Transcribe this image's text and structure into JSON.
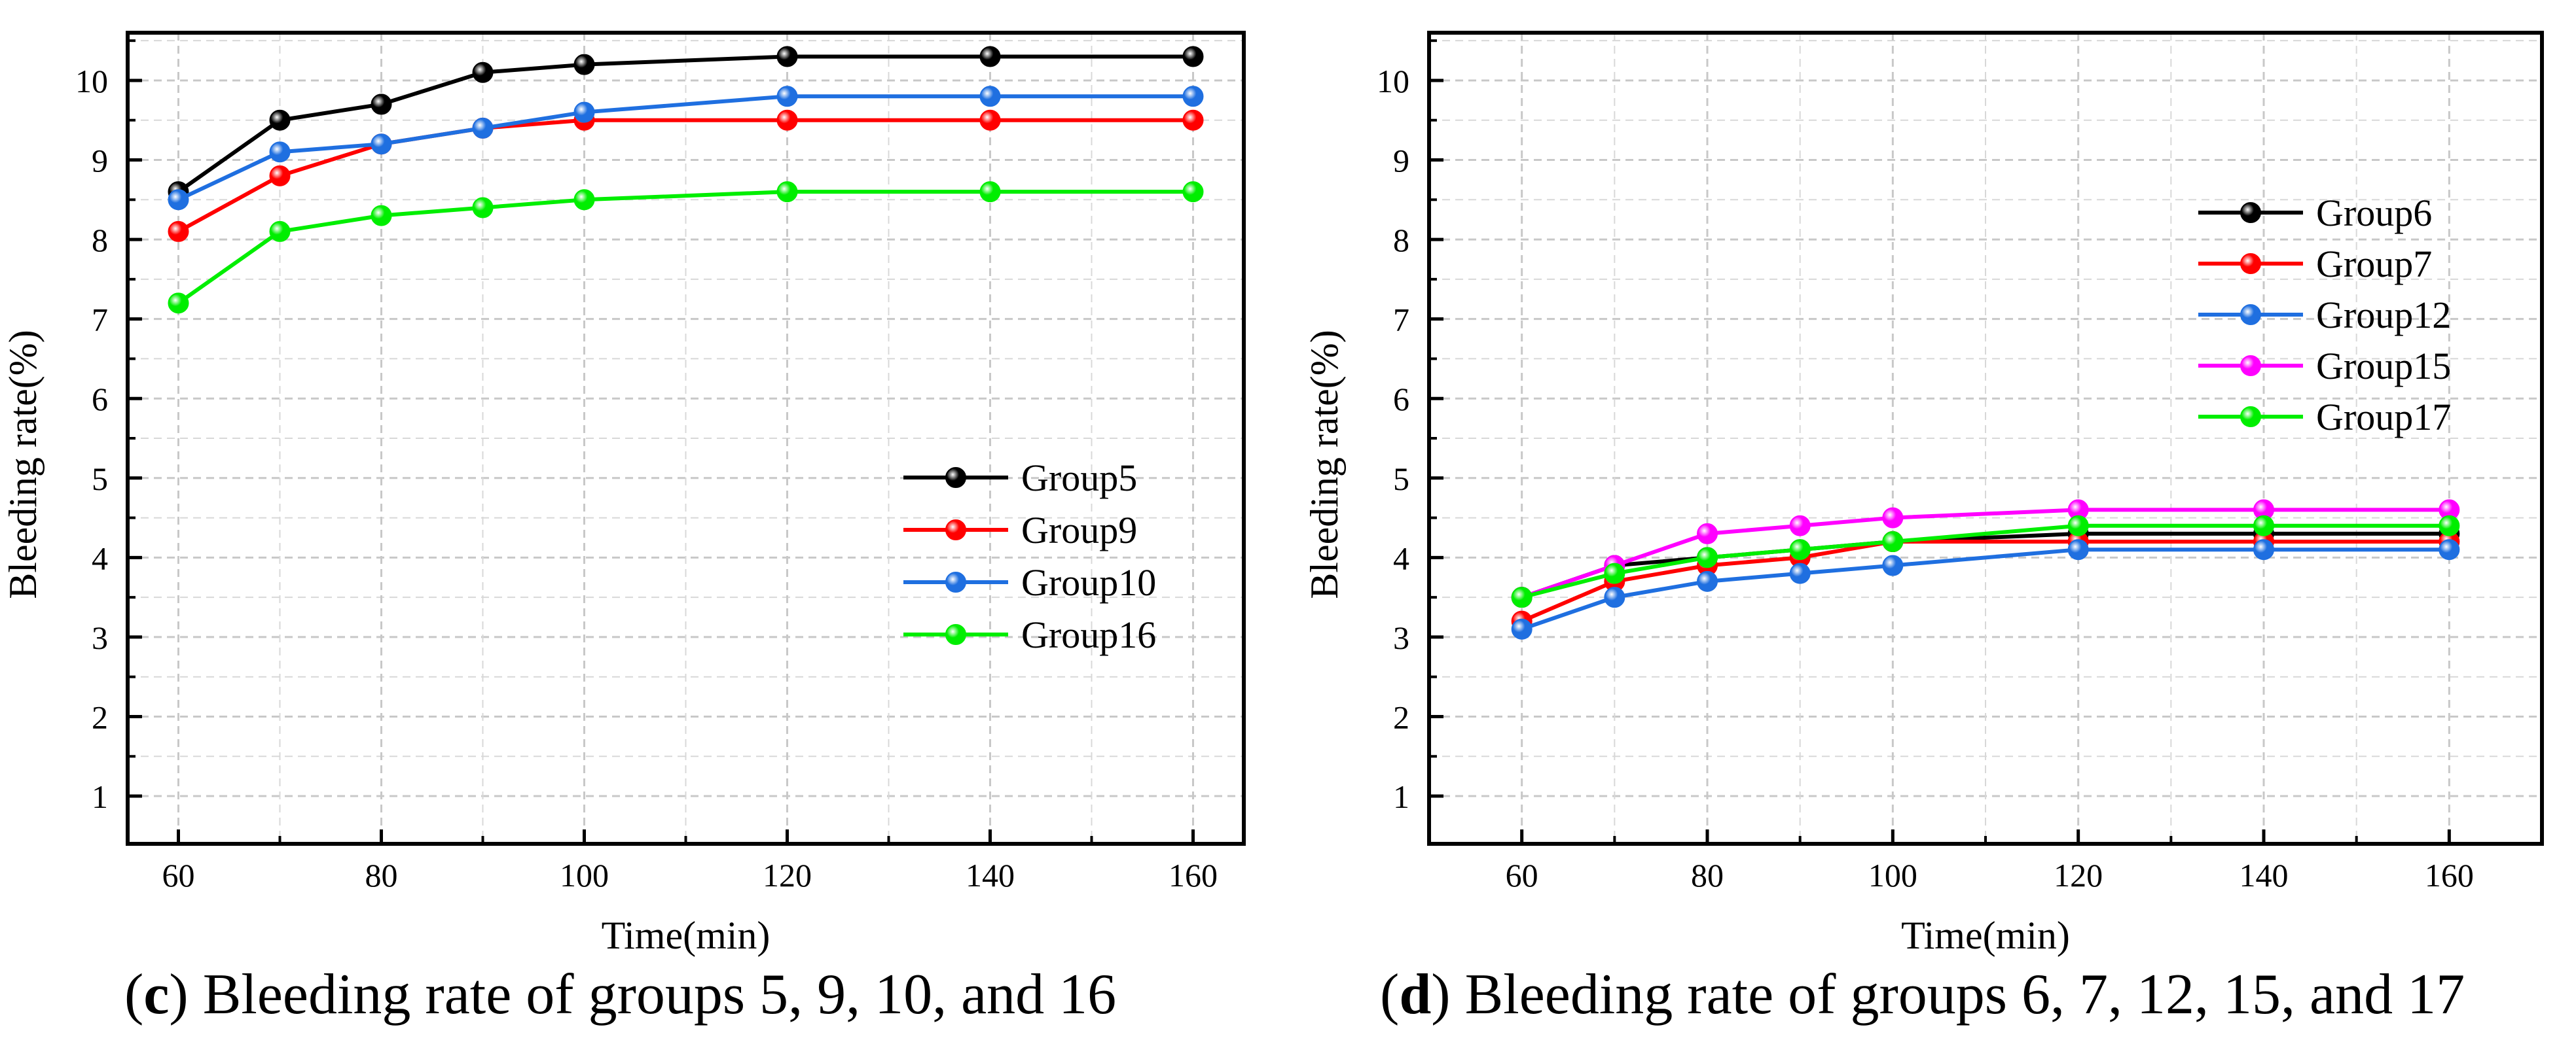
{
  "chart_data": [
    {
      "type": "line",
      "panel": "c",
      "title": "",
      "xlabel": "Time(min)",
      "ylabel": "Bleeding rate(%)",
      "xlim": [
        55,
        165
      ],
      "ylim": [
        0.4,
        10.6
      ],
      "x_ticks": [
        60,
        80,
        100,
        120,
        140,
        160
      ],
      "y_ticks": [
        1,
        2,
        3,
        4,
        5,
        6,
        7,
        8,
        9,
        10
      ],
      "grid": true,
      "legend_position": "lower-right",
      "x": [
        60,
        70,
        80,
        90,
        100,
        120,
        140,
        160
      ],
      "series": [
        {
          "name": "Group5",
          "color": "#000000",
          "values": [
            8.6,
            9.5,
            9.7,
            10.1,
            10.2,
            10.3,
            10.3,
            10.3
          ]
        },
        {
          "name": "Group9",
          "color": "#ff0000",
          "values": [
            8.1,
            8.8,
            9.2,
            9.4,
            9.5,
            9.5,
            9.5,
            9.5
          ]
        },
        {
          "name": "Group10",
          "color": "#1f6fe0",
          "values": [
            8.5,
            9.1,
            9.2,
            9.4,
            9.6,
            9.8,
            9.8,
            9.8
          ]
        },
        {
          "name": "Group16",
          "color": "#00ee00",
          "values": [
            7.2,
            8.1,
            8.3,
            8.4,
            8.5,
            8.6,
            8.6,
            8.6
          ]
        }
      ]
    },
    {
      "type": "line",
      "panel": "d",
      "title": "",
      "xlabel": "Time(min)",
      "ylabel": "Bleeding rate(%)",
      "xlim": [
        50,
        170
      ],
      "ylim": [
        0.4,
        10.6
      ],
      "x_ticks": [
        60,
        80,
        100,
        120,
        140,
        160
      ],
      "y_ticks": [
        1,
        2,
        3,
        4,
        5,
        6,
        7,
        8,
        9,
        10
      ],
      "grid": true,
      "legend_position": "upper-right",
      "x": [
        60,
        70,
        80,
        90,
        100,
        120,
        140,
        160
      ],
      "series": [
        {
          "name": "Group6",
          "color": "#000000",
          "values": [
            3.5,
            3.9,
            4.0,
            4.1,
            4.2,
            4.3,
            4.3,
            4.3
          ]
        },
        {
          "name": "Group7",
          "color": "#ff0000",
          "values": [
            3.2,
            3.7,
            3.9,
            4.0,
            4.2,
            4.2,
            4.2,
            4.2
          ]
        },
        {
          "name": "Group12",
          "color": "#1f6fe0",
          "values": [
            3.1,
            3.5,
            3.7,
            3.8,
            3.9,
            4.1,
            4.1,
            4.1
          ]
        },
        {
          "name": "Group15",
          "color": "#ff00ff",
          "values": [
            3.5,
            3.9,
            4.3,
            4.4,
            4.5,
            4.6,
            4.6,
            4.6
          ]
        },
        {
          "name": "Group17",
          "color": "#00ee00",
          "values": [
            3.5,
            3.8,
            4.0,
            4.1,
            4.2,
            4.4,
            4.4,
            4.4
          ]
        }
      ]
    }
  ],
  "captions": {
    "c": {
      "letter": "c",
      "text": " Bleeding rate of groups 5, 9, 10, and 16"
    },
    "d": {
      "letter": "d",
      "text": " Bleeding rate of groups 6, 7, 12, 15, and 17"
    }
  }
}
